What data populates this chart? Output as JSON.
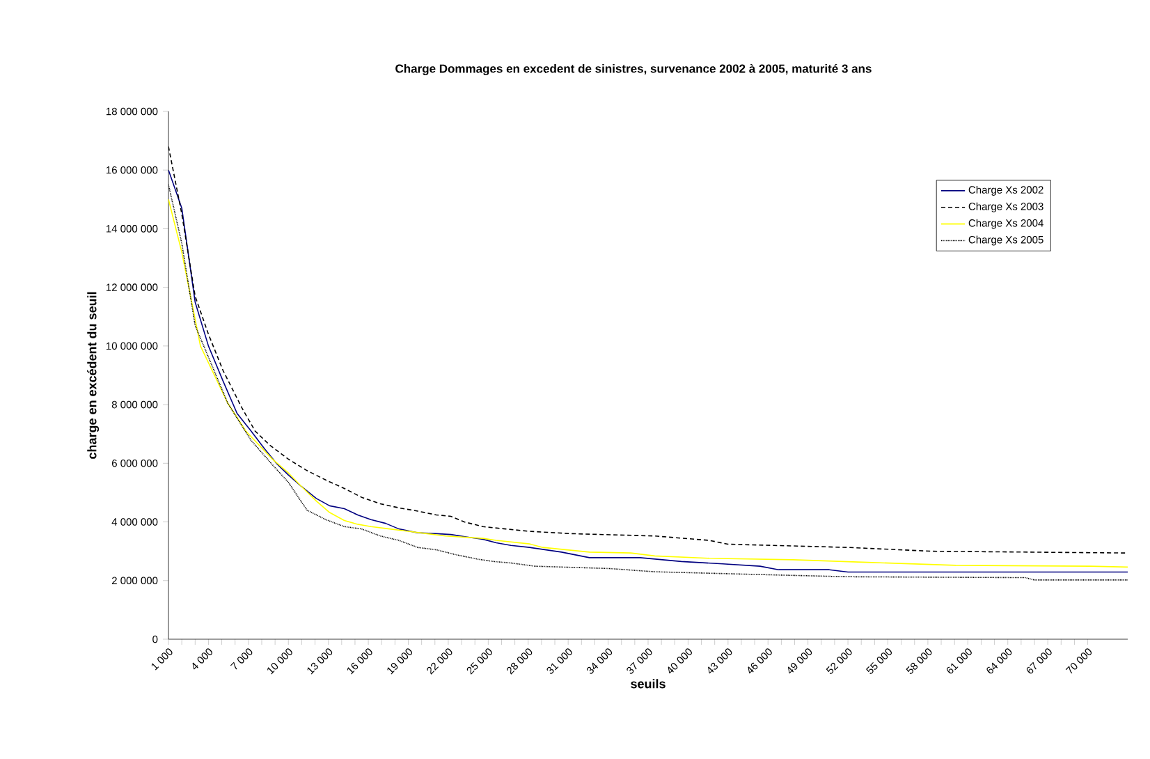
{
  "chart_data": {
    "type": "line",
    "title": "Charge Dommages en excedent de sinistres, survenance 2002 à 2005, maturité 3 ans",
    "xlabel": "seuils",
    "ylabel": "charge en excédent du seuil",
    "xlim": [
      1000,
      73000
    ],
    "xticks": [
      {
        "value": 1000,
        "label": "1 000"
      },
      {
        "value": 4000,
        "label": "4 000"
      },
      {
        "value": 7000,
        "label": "7 000"
      },
      {
        "value": 10000,
        "label": "10 000"
      },
      {
        "value": 13000,
        "label": "13 000"
      },
      {
        "value": 16000,
        "label": "16 000"
      },
      {
        "value": 19000,
        "label": "19 000"
      },
      {
        "value": 22000,
        "label": "22 000"
      },
      {
        "value": 25000,
        "label": "25 000"
      },
      {
        "value": 28000,
        "label": "28 000"
      },
      {
        "value": 31000,
        "label": "31 000"
      },
      {
        "value": 34000,
        "label": "34 000"
      },
      {
        "value": 37000,
        "label": "37 000"
      },
      {
        "value": 40000,
        "label": "40 000"
      },
      {
        "value": 43000,
        "label": "43 000"
      },
      {
        "value": 46000,
        "label": "46 000"
      },
      {
        "value": 49000,
        "label": "49 000"
      },
      {
        "value": 52000,
        "label": "52 000"
      },
      {
        "value": 55000,
        "label": "55 000"
      },
      {
        "value": 58000,
        "label": "58 000"
      },
      {
        "value": 61000,
        "label": "61 000"
      },
      {
        "value": 64000,
        "label": "64 000"
      },
      {
        "value": 67000,
        "label": "67 000"
      },
      {
        "value": 70000,
        "label": "70 000"
      }
    ],
    "ylim": [
      0,
      18000000
    ],
    "yticks": [
      0,
      {
        "value": 2000000,
        "label": "2 000 000"
      },
      {
        "value": 4000000,
        "label": "4 000 000"
      },
      {
        "value": 6000000,
        "label": "6 000 000"
      },
      {
        "value": 8000000,
        "label": "8 000 000"
      },
      {
        "value": 10000000,
        "label": "10 000 000"
      },
      {
        "value": 12000000,
        "label": "12 000 000"
      },
      {
        "value": 14000000,
        "label": "14 000 000"
      },
      {
        "value": 16000000,
        "label": "16 000 000"
      },
      {
        "value": 18000000,
        "label": "18 000 000"
      }
    ],
    "legend": "top right",
    "grid": false,
    "series": [
      {
        "name": "Charge Xs 2002",
        "color": "#000080",
        "line_style": "solid",
        "x": [
          1000,
          2000,
          3000,
          4000,
          5100,
          6150,
          7200,
          8200,
          9100,
          10000,
          11000,
          12100,
          13100,
          14200,
          15200,
          16200,
          17300,
          18300,
          19700,
          21100,
          22200,
          23500,
          24600,
          25600,
          26700,
          28100,
          30500,
          32600,
          36400,
          39500,
          42600,
          45400,
          46800,
          50600,
          52000,
          73000
        ],
        "values": [
          16000000,
          14700000,
          11500000,
          10000000,
          8800000,
          7700000,
          7100000,
          6500000,
          6000000,
          5600000,
          5200000,
          4800000,
          4550000,
          4450000,
          4240000,
          4080000,
          3950000,
          3760000,
          3630000,
          3600000,
          3570000,
          3480000,
          3410000,
          3290000,
          3200000,
          3130000,
          2970000,
          2780000,
          2780000,
          2650000,
          2570000,
          2490000,
          2370000,
          2370000,
          2290000,
          2290000
        ]
      },
      {
        "name": "Charge Xs 2003",
        "color": "#000000",
        "line_style": "dashed",
        "x": [
          1000,
          2000,
          3000,
          4000,
          5100,
          6500,
          7500,
          8600,
          10000,
          11400,
          12800,
          14200,
          15500,
          16900,
          18300,
          19700,
          21100,
          22200,
          23200,
          24600,
          26300,
          28100,
          31200,
          37500,
          41600,
          43000,
          52000,
          58300,
          73000
        ],
        "values": [
          16800000,
          14500000,
          11700000,
          10400000,
          9160000,
          7900000,
          7100000,
          6620000,
          6140000,
          5750000,
          5430000,
          5140000,
          4840000,
          4620000,
          4480000,
          4370000,
          4240000,
          4190000,
          4000000,
          3840000,
          3760000,
          3680000,
          3600000,
          3520000,
          3370000,
          3240000,
          3130000,
          3000000,
          2940000
        ]
      },
      {
        "name": "Charge Xs 2004",
        "color": "#ffff00",
        "line_style": "solid",
        "x": [
          1000,
          2000,
          3400,
          5450,
          6800,
          8800,
          10000,
          11000,
          12100,
          13100,
          14200,
          15200,
          16200,
          17600,
          19000,
          20400,
          21800,
          24600,
          25600,
          28100,
          29100,
          32600,
          35700,
          37500,
          41600,
          47900,
          53500,
          60100,
          70200,
          73000
        ],
        "values": [
          15000000,
          13200000,
          10000000,
          8050000,
          7100000,
          6140000,
          5670000,
          5200000,
          4710000,
          4320000,
          4050000,
          3920000,
          3840000,
          3760000,
          3680000,
          3600000,
          3520000,
          3440000,
          3370000,
          3250000,
          3130000,
          2970000,
          2940000,
          2840000,
          2760000,
          2710000,
          2620000,
          2520000,
          2490000,
          2460000
        ]
      },
      {
        "name": "Charge Xs 2005",
        "color": "#000000",
        "line_style": "dotted",
        "x": [
          1000,
          2000,
          3000,
          5450,
          7200,
          8900,
          10000,
          11400,
          12800,
          14200,
          15500,
          16900,
          18300,
          19700,
          21100,
          22500,
          24200,
          25400,
          26700,
          28500,
          34100,
          37500,
          45800,
          52000,
          65300,
          66000,
          73000
        ],
        "values": [
          15500000,
          13500000,
          10700000,
          8050000,
          6780000,
          5900000,
          5350000,
          4400000,
          4080000,
          3840000,
          3760000,
          3520000,
          3370000,
          3130000,
          3050000,
          2890000,
          2730000,
          2650000,
          2600000,
          2490000,
          2410000,
          2300000,
          2200000,
          2130000,
          2100000,
          2020000,
          2020000
        ]
      }
    ]
  }
}
